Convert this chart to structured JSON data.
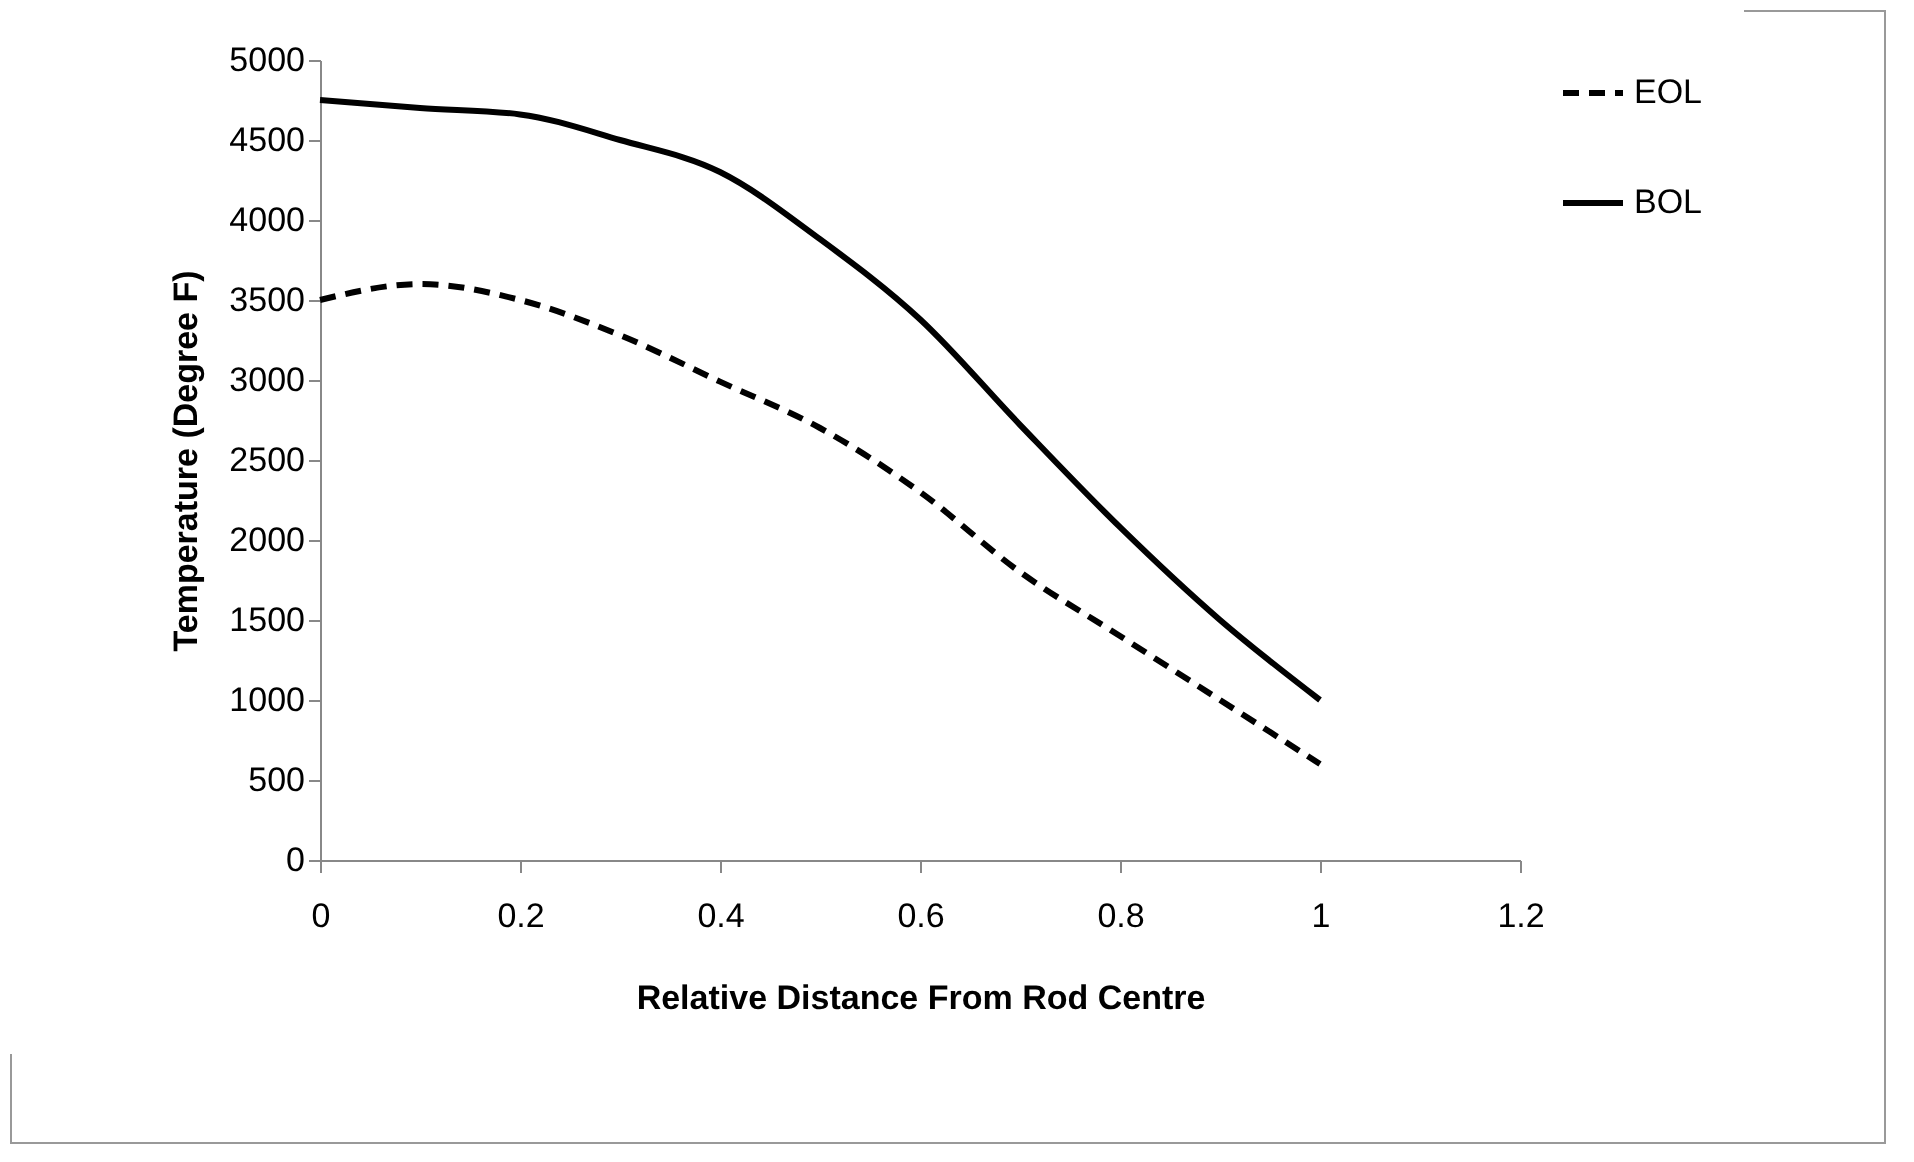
{
  "chart_data": {
    "type": "line",
    "xlabel": "Relative Distance From Rod Centre",
    "ylabel": "Temperature (Degree F)",
    "x": [
      0,
      0.1,
      0.2,
      0.3,
      0.4,
      0.5,
      0.6,
      0.7,
      0.8,
      0.9,
      1.0
    ],
    "series": [
      {
        "name": "EOL",
        "color": "#000000",
        "line_style": "dashed",
        "values": [
          3500,
          3600,
          3500,
          3280,
          2990,
          2700,
          2300,
          1800,
          1400,
          1000,
          600
        ]
      },
      {
        "name": "BOL",
        "color": "#000000",
        "line_style": "solid",
        "values": [
          4750,
          4700,
          4660,
          4500,
          4300,
          3880,
          3380,
          2720,
          2080,
          1500,
          1000
        ]
      }
    ],
    "xlim": [
      0,
      1.2
    ],
    "xticks": [
      0,
      0.2,
      0.4,
      0.6,
      0.8,
      1,
      1.2
    ],
    "ylim": [
      0,
      5000
    ],
    "yticks": [
      0,
      500,
      1000,
      1500,
      2000,
      2500,
      3000,
      3500,
      4000,
      4500,
      5000
    ],
    "grid": false,
    "legend": "right",
    "marker": "none"
  }
}
